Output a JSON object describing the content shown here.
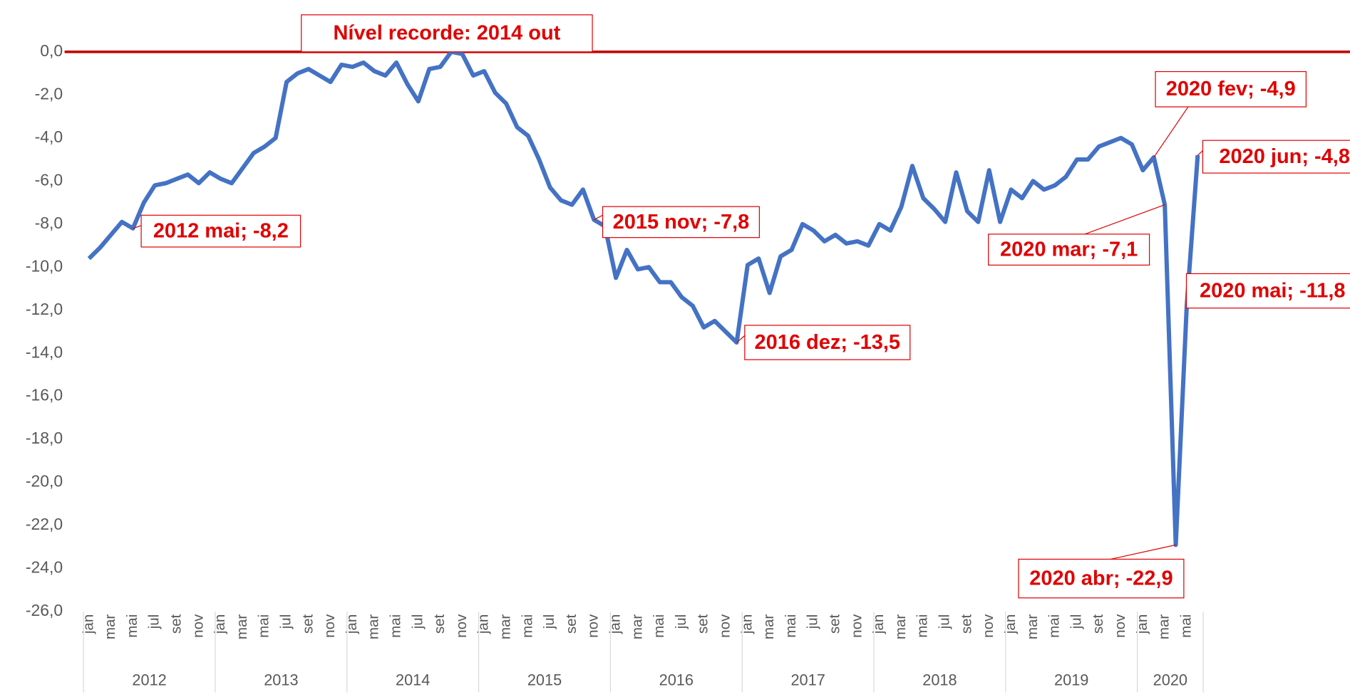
{
  "chart_data": {
    "type": "line",
    "categories": [
      "jan",
      null,
      "mar",
      null,
      "mai",
      null,
      "jul",
      null,
      "set",
      null,
      "nov",
      null,
      "jan",
      null,
      "mar",
      null,
      "mai",
      null,
      "jul",
      null,
      "set",
      null,
      "nov",
      null,
      "jan",
      null,
      "mar",
      null,
      "mai",
      null,
      "jul",
      null,
      "set",
      null,
      "nov",
      null,
      "jan",
      null,
      "mar",
      null,
      "mai",
      null,
      "jul",
      null,
      "set",
      null,
      "nov",
      null,
      "jan",
      null,
      "mar",
      null,
      "mai",
      null,
      "jul",
      null,
      "set",
      null,
      "nov",
      null,
      "jan",
      null,
      "mar",
      null,
      "mai",
      null,
      "jul",
      null,
      "set",
      null,
      "nov",
      null,
      "jan",
      null,
      "mar",
      null,
      "mai",
      null,
      "jul",
      null,
      "set",
      null,
      "nov",
      null,
      "jan",
      null,
      "mar",
      null,
      "mai",
      null,
      "jul",
      null,
      "set",
      null,
      "nov",
      null,
      "jan",
      null,
      "mar",
      null,
      "mai",
      null
    ],
    "groups": [
      "2012",
      "2013",
      "2014",
      "2015",
      "2016",
      "2017",
      "2018",
      "2019",
      "2020"
    ],
    "series": [
      {
        "color": "#4472c4",
        "values": [
          -9.6,
          -9.1,
          -8.5,
          -7.9,
          -8.2,
          -7.0,
          -6.2,
          -6.1,
          -5.9,
          -5.7,
          -6.1,
          -5.6,
          -5.9,
          -6.1,
          -5.4,
          -4.7,
          -4.4,
          -4.0,
          -1.4,
          -1.0,
          -0.8,
          -1.1,
          -1.4,
          -0.6,
          -0.7,
          -0.5,
          -0.9,
          -1.1,
          -0.5,
          -1.5,
          -2.3,
          -0.8,
          -0.7,
          0.0,
          -0.1,
          -1.1,
          -0.9,
          -1.9,
          -2.4,
          -3.5,
          -3.9,
          -5.0,
          -6.3,
          -6.9,
          -7.1,
          -6.4,
          -7.8,
          -8.1,
          -10.5,
          -9.2,
          -10.1,
          -10.0,
          -10.7,
          -10.7,
          -11.4,
          -11.8,
          -12.8,
          -12.5,
          -13.0,
          -13.5,
          -9.9,
          -9.6,
          -11.2,
          -9.5,
          -9.2,
          -8.0,
          -8.3,
          -8.8,
          -8.5,
          -8.9,
          -8.8,
          -9.0,
          -8.0,
          -8.3,
          -7.2,
          -5.3,
          -6.8,
          -7.3,
          -7.9,
          -5.6,
          -7.4,
          -7.9,
          -5.5,
          -7.9,
          -6.4,
          -6.8,
          -6.0,
          -6.4,
          -6.2,
          -5.8,
          -5.0,
          -5.0,
          -4.4,
          -4.2,
          -4.0,
          -4.3,
          -5.5,
          -4.9,
          -7.1,
          -22.9,
          -11.8,
          -4.8
        ],
        "value_labels": [
          null,
          null,
          null,
          null,
          "2012 mai; -8,2",
          null,
          null,
          null,
          null,
          null,
          null,
          null,
          null,
          null,
          null,
          null,
          null,
          null,
          null,
          null,
          null,
          null,
          null,
          null,
          null,
          null,
          null,
          null,
          null,
          null,
          null,
          null,
          null,
          null,
          null,
          null,
          null,
          null,
          null,
          null,
          null,
          null,
          null,
          null,
          null,
          null,
          "2015 nov; -7,8",
          null,
          null,
          null,
          null,
          null,
          null,
          null,
          null,
          null,
          null,
          null,
          null,
          "2016 dez; -13,5",
          null,
          null,
          null,
          null,
          null,
          null,
          null,
          null,
          null,
          null,
          null,
          null,
          null,
          null,
          null,
          null,
          null,
          null,
          null,
          null,
          null,
          null,
          null,
          null,
          null,
          null,
          null,
          null,
          null,
          null,
          null,
          null,
          null,
          null,
          null,
          null,
          null,
          "2020 fev; -4,9",
          "2020 mar; -7,1",
          "2020 abr; -22,9",
          "2020 mai; -11,8",
          "2020 jun; -4,8"
        ]
      }
    ],
    "reference_line": {
      "value": 0.0,
      "label": "Nível recorde: 2014 out",
      "color": "#c00000"
    },
    "ylim": [
      -26,
      0
    ],
    "yticks": [
      {
        "value": 0,
        "label": "0,0"
      },
      {
        "value": -2,
        "label": "-2,0"
      },
      {
        "value": -4,
        "label": "-4,0"
      },
      {
        "value": -6,
        "label": "-6,0"
      },
      {
        "value": -8,
        "label": "-8,0"
      },
      {
        "value": -10,
        "label": "-10,0"
      },
      {
        "value": -12,
        "label": "-12,0"
      },
      {
        "value": -14,
        "label": "-14,0"
      },
      {
        "value": -16,
        "label": "-16,0"
      },
      {
        "value": -18,
        "label": "-18,0"
      },
      {
        "value": -20,
        "label": "-20,0"
      },
      {
        "value": -22,
        "label": "-22,0"
      },
      {
        "value": -24,
        "label": "-24,0"
      },
      {
        "value": -26,
        "label": "-26,0"
      }
    ],
    "grid": false
  }
}
